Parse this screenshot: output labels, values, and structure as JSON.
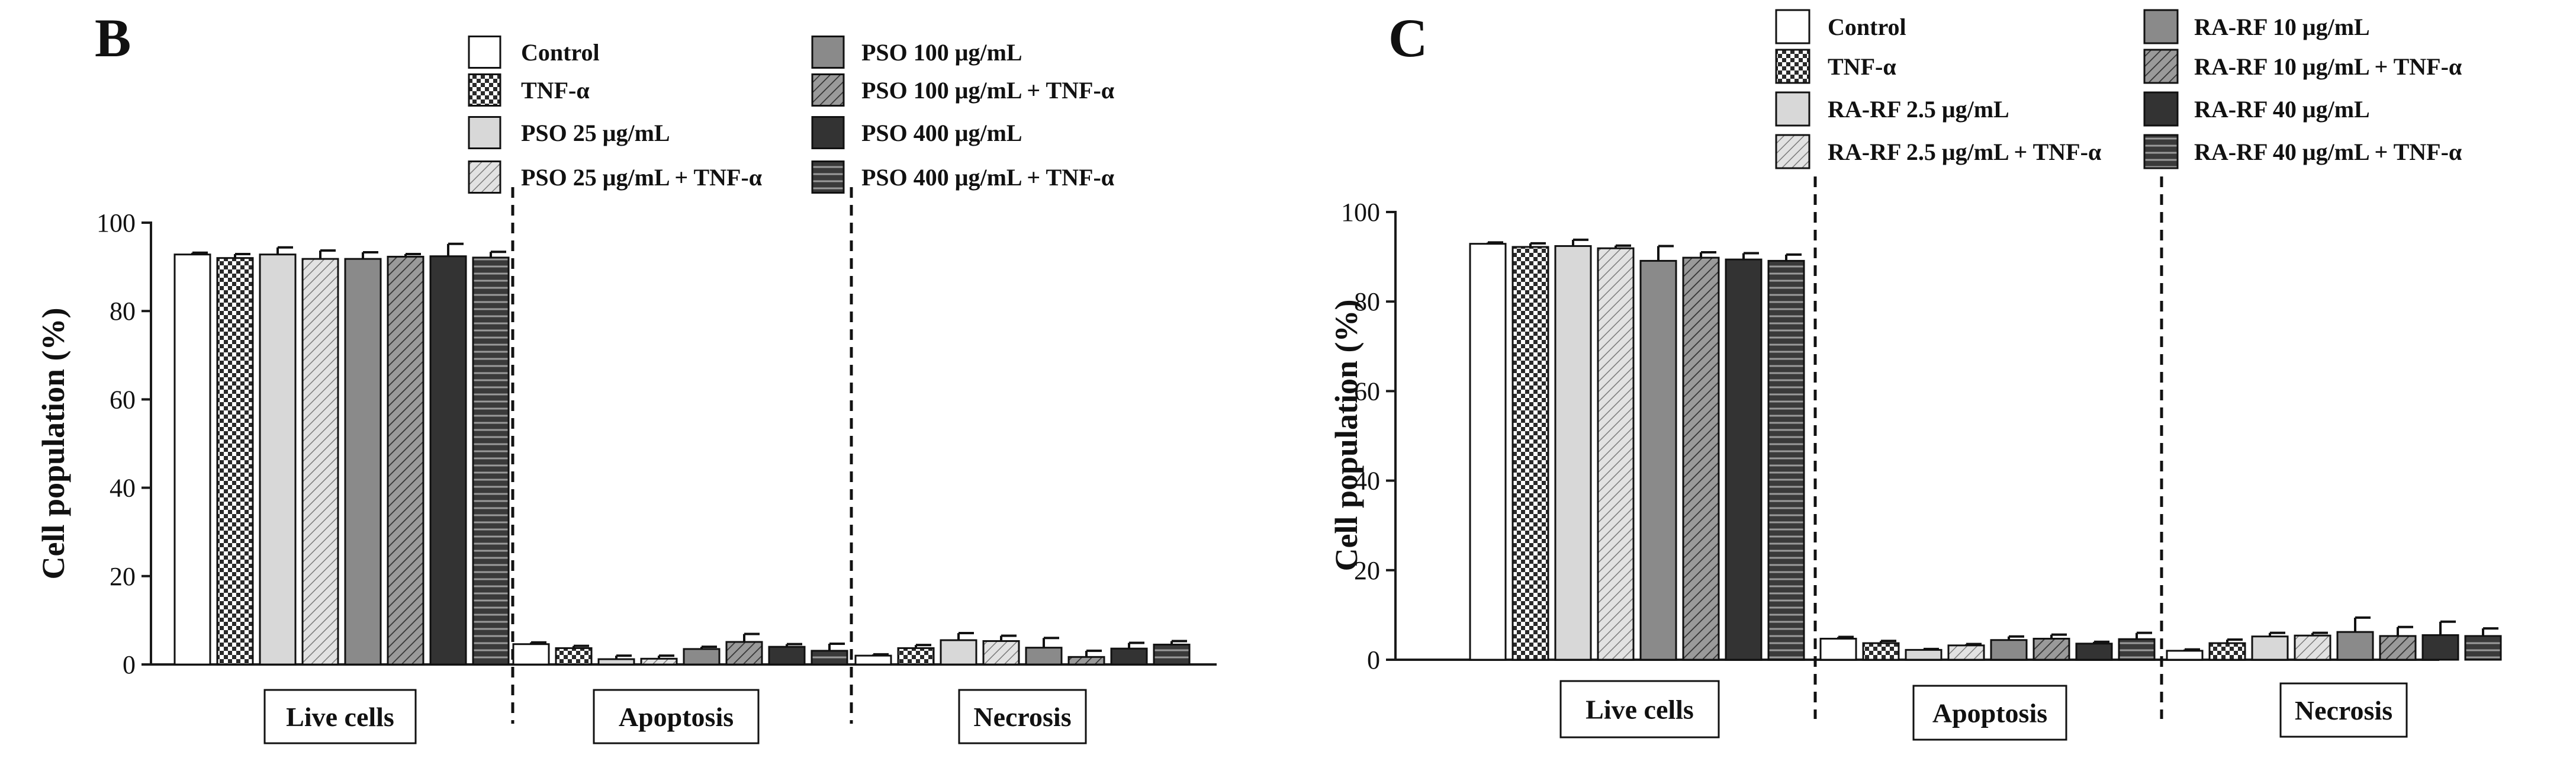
{
  "colors": {
    "axis": "#1a1a1a",
    "white": "#ffffff",
    "light": "#d8d8d8",
    "mid": "#8a8a8a",
    "dark": "#333333"
  },
  "chart_data": [
    {
      "panel_label": "B",
      "type": "bar",
      "ylabel": "Cell population  (%)",
      "ylim": [
        0,
        100
      ],
      "yticks": [
        0,
        20,
        40,
        60,
        80,
        100
      ],
      "categories": [
        "Live cells",
        "Apoptosis",
        "Necrosis"
      ],
      "series": [
        {
          "name": "Control",
          "pattern": "white",
          "values": [
            92.8,
            4.6,
            2.0
          ],
          "errors": [
            0.4,
            0.4,
            0.3
          ]
        },
        {
          "name": "TNF-α",
          "pattern": "check",
          "values": [
            92.0,
            3.7,
            3.7
          ],
          "errors": [
            0.9,
            0.5,
            0.7
          ]
        },
        {
          "name": "PSO 25 μg/mL",
          "pattern": "light",
          "values": [
            92.8,
            1.2,
            5.5
          ],
          "errors": [
            1.6,
            0.8,
            1.6
          ]
        },
        {
          "name": "PSO 25 μg/mL + TNF-α",
          "pattern": "hatch-light",
          "values": [
            91.8,
            1.3,
            5.3
          ],
          "errors": [
            1.9,
            0.7,
            1.2
          ]
        },
        {
          "name": "PSO 100 μg/mL",
          "pattern": "mid",
          "values": [
            91.8,
            3.5,
            3.8
          ],
          "errors": [
            1.5,
            0.5,
            2.2
          ]
        },
        {
          "name": "PSO 100 μg/mL + TNF-α",
          "pattern": "hatch-dark",
          "values": [
            92.3,
            5.1,
            1.7
          ],
          "errors": [
            0.6,
            1.8,
            1.4
          ]
        },
        {
          "name": "PSO 400 μg/mL",
          "pattern": "dark",
          "values": [
            92.4,
            4.0,
            3.6
          ],
          "errors": [
            2.8,
            0.6,
            1.3
          ]
        },
        {
          "name": "PSO 400 μg/mL + TNF-α",
          "pattern": "stripe",
          "values": [
            92.1,
            3.1,
            4.5
          ],
          "errors": [
            1.3,
            1.6,
            0.8
          ]
        }
      ]
    },
    {
      "panel_label": "C",
      "type": "bar",
      "ylabel": "Cell population  (%)",
      "ylim": [
        0,
        100
      ],
      "yticks": [
        0,
        20,
        40,
        60,
        80,
        100
      ],
      "categories": [
        "Live cells",
        "Apoptosis",
        "Necrosis"
      ],
      "series": [
        {
          "name": "Control",
          "pattern": "white",
          "values": [
            92.9,
            4.7,
            2.0
          ],
          "errors": [
            0.3,
            0.4,
            0.3
          ]
        },
        {
          "name": "TNF-α",
          "pattern": "check",
          "values": [
            92.2,
            3.7,
            3.7
          ],
          "errors": [
            0.8,
            0.5,
            0.8
          ]
        },
        {
          "name": "RA-RF 2.5 μg/mL",
          "pattern": "light",
          "values": [
            92.4,
            2.2,
            5.2
          ],
          "errors": [
            1.4,
            0.2,
            0.8
          ]
        },
        {
          "name": "RA-RF 2.5 μg/mL + TNF-α",
          "pattern": "hatch-light",
          "values": [
            91.9,
            3.2,
            5.4
          ],
          "errors": [
            0.6,
            0.3,
            0.6
          ]
        },
        {
          "name": "RA-RF 10 μg/mL",
          "pattern": "mid",
          "values": [
            89.1,
            4.4,
            6.2
          ],
          "errors": [
            3.3,
            0.8,
            3.2
          ]
        },
        {
          "name": "RA-RF 10 μg/mL + TNF-α",
          "pattern": "hatch-dark",
          "values": [
            89.8,
            4.7,
            5.3
          ],
          "errors": [
            1.2,
            0.9,
            2.0
          ]
        },
        {
          "name": "RA-RF 40 μg/mL",
          "pattern": "dark",
          "values": [
            89.4,
            3.6,
            5.5
          ],
          "errors": [
            1.4,
            0.4,
            3.0
          ]
        },
        {
          "name": "RA-RF 40 μg/mL + TNF-α",
          "pattern": "stripe",
          "values": [
            89.1,
            4.6,
            5.3
          ],
          "errors": [
            1.4,
            1.4,
            1.7
          ]
        }
      ]
    }
  ]
}
